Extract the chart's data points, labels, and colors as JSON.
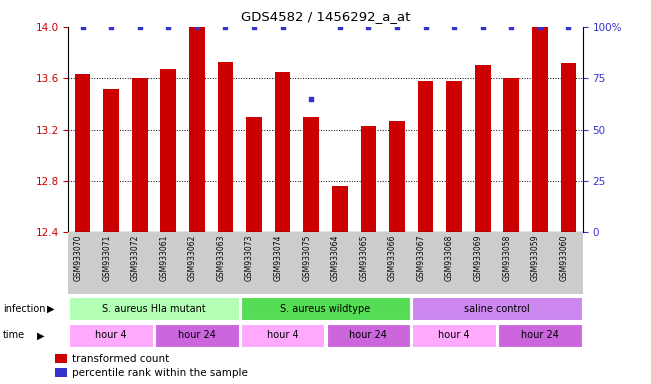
{
  "title": "GDS4582 / 1456292_a_at",
  "samples": [
    "GSM933070",
    "GSM933071",
    "GSM933072",
    "GSM933061",
    "GSM933062",
    "GSM933063",
    "GSM933073",
    "GSM933074",
    "GSM933075",
    "GSM933064",
    "GSM933065",
    "GSM933066",
    "GSM933067",
    "GSM933068",
    "GSM933069",
    "GSM933058",
    "GSM933059",
    "GSM933060"
  ],
  "bar_values": [
    13.63,
    13.52,
    13.6,
    13.67,
    14.0,
    13.73,
    13.3,
    13.65,
    13.3,
    12.76,
    13.23,
    13.27,
    13.58,
    13.58,
    13.7,
    13.6,
    14.0,
    13.72
  ],
  "percentile_values": [
    100,
    100,
    100,
    100,
    100,
    100,
    100,
    100,
    65,
    100,
    100,
    100,
    100,
    100,
    100,
    100,
    100,
    100
  ],
  "ymin": 12.4,
  "ymax": 14.0,
  "yticks_left": [
    12.4,
    12.8,
    13.2,
    13.6,
    14.0
  ],
  "yticks_right": [
    0,
    25,
    50,
    75,
    100
  ],
  "yticklabels_right": [
    "0",
    "25",
    "50",
    "75",
    "100%"
  ],
  "bar_color": "#cc0000",
  "percentile_color": "#3333cc",
  "infection_groups": [
    {
      "label": "S. aureus Hla mutant",
      "start": 0,
      "end": 6,
      "color": "#b3ffb3"
    },
    {
      "label": "S. aureus wildtype",
      "start": 6,
      "end": 12,
      "color": "#55dd55"
    },
    {
      "label": "saline control",
      "start": 12,
      "end": 18,
      "color": "#cc88ee"
    }
  ],
  "time_groups": [
    {
      "label": "hour 4",
      "start": 0,
      "end": 3,
      "color": "#ffaaff"
    },
    {
      "label": "hour 24",
      "start": 3,
      "end": 6,
      "color": "#cc66dd"
    },
    {
      "label": "hour 4",
      "start": 6,
      "end": 9,
      "color": "#ffaaff"
    },
    {
      "label": "hour 24",
      "start": 9,
      "end": 12,
      "color": "#cc66dd"
    },
    {
      "label": "hour 4",
      "start": 12,
      "end": 15,
      "color": "#ffaaff"
    },
    {
      "label": "hour 24",
      "start": 15,
      "end": 18,
      "color": "#cc66dd"
    }
  ],
  "legend_items": [
    {
      "label": "transformed count",
      "color": "#cc0000"
    },
    {
      "label": "percentile rank within the sample",
      "color": "#3333cc"
    }
  ],
  "bg_color": "#ffffff",
  "tick_label_color_left": "#cc0000",
  "tick_label_color_right": "#3333cc",
  "xtick_bg_color": "#cccccc"
}
